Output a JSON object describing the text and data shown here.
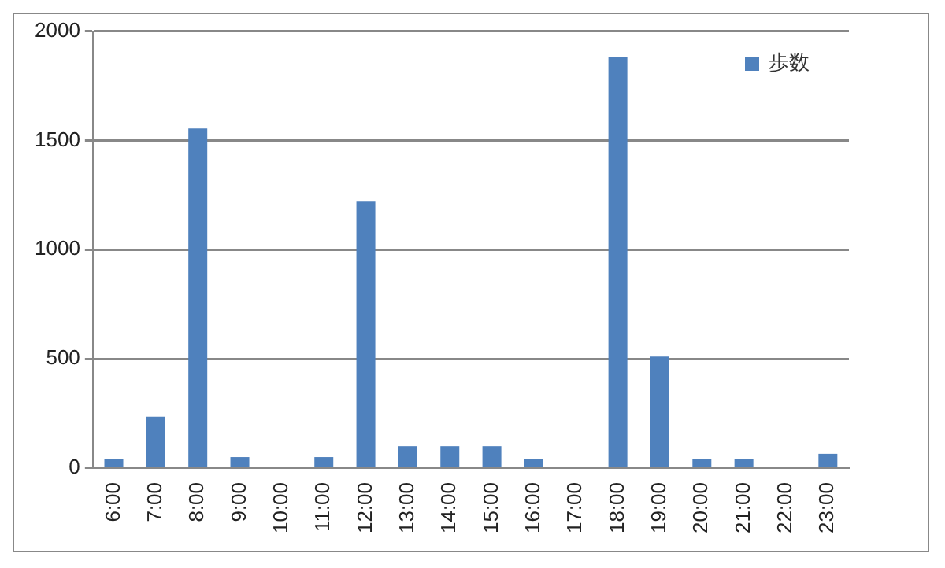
{
  "chart_data": {
    "type": "bar",
    "categories": [
      "6:00",
      "7:00",
      "8:00",
      "9:00",
      "10:00",
      "11:00",
      "12:00",
      "13:00",
      "14:00",
      "15:00",
      "16:00",
      "17:00",
      "18:00",
      "19:00",
      "20:00",
      "21:00",
      "22:00",
      "23:00"
    ],
    "series": [
      {
        "name": "歩数",
        "color": "#4f81bd",
        "values": [
          40,
          235,
          1555,
          50,
          0,
          50,
          1220,
          100,
          100,
          100,
          40,
          0,
          1880,
          510,
          40,
          40,
          0,
          65
        ]
      }
    ],
    "ylim": [
      0,
      2000
    ],
    "yticks": [
      0,
      500,
      1000,
      1500,
      2000
    ],
    "grid": "y",
    "legend": "top right"
  }
}
